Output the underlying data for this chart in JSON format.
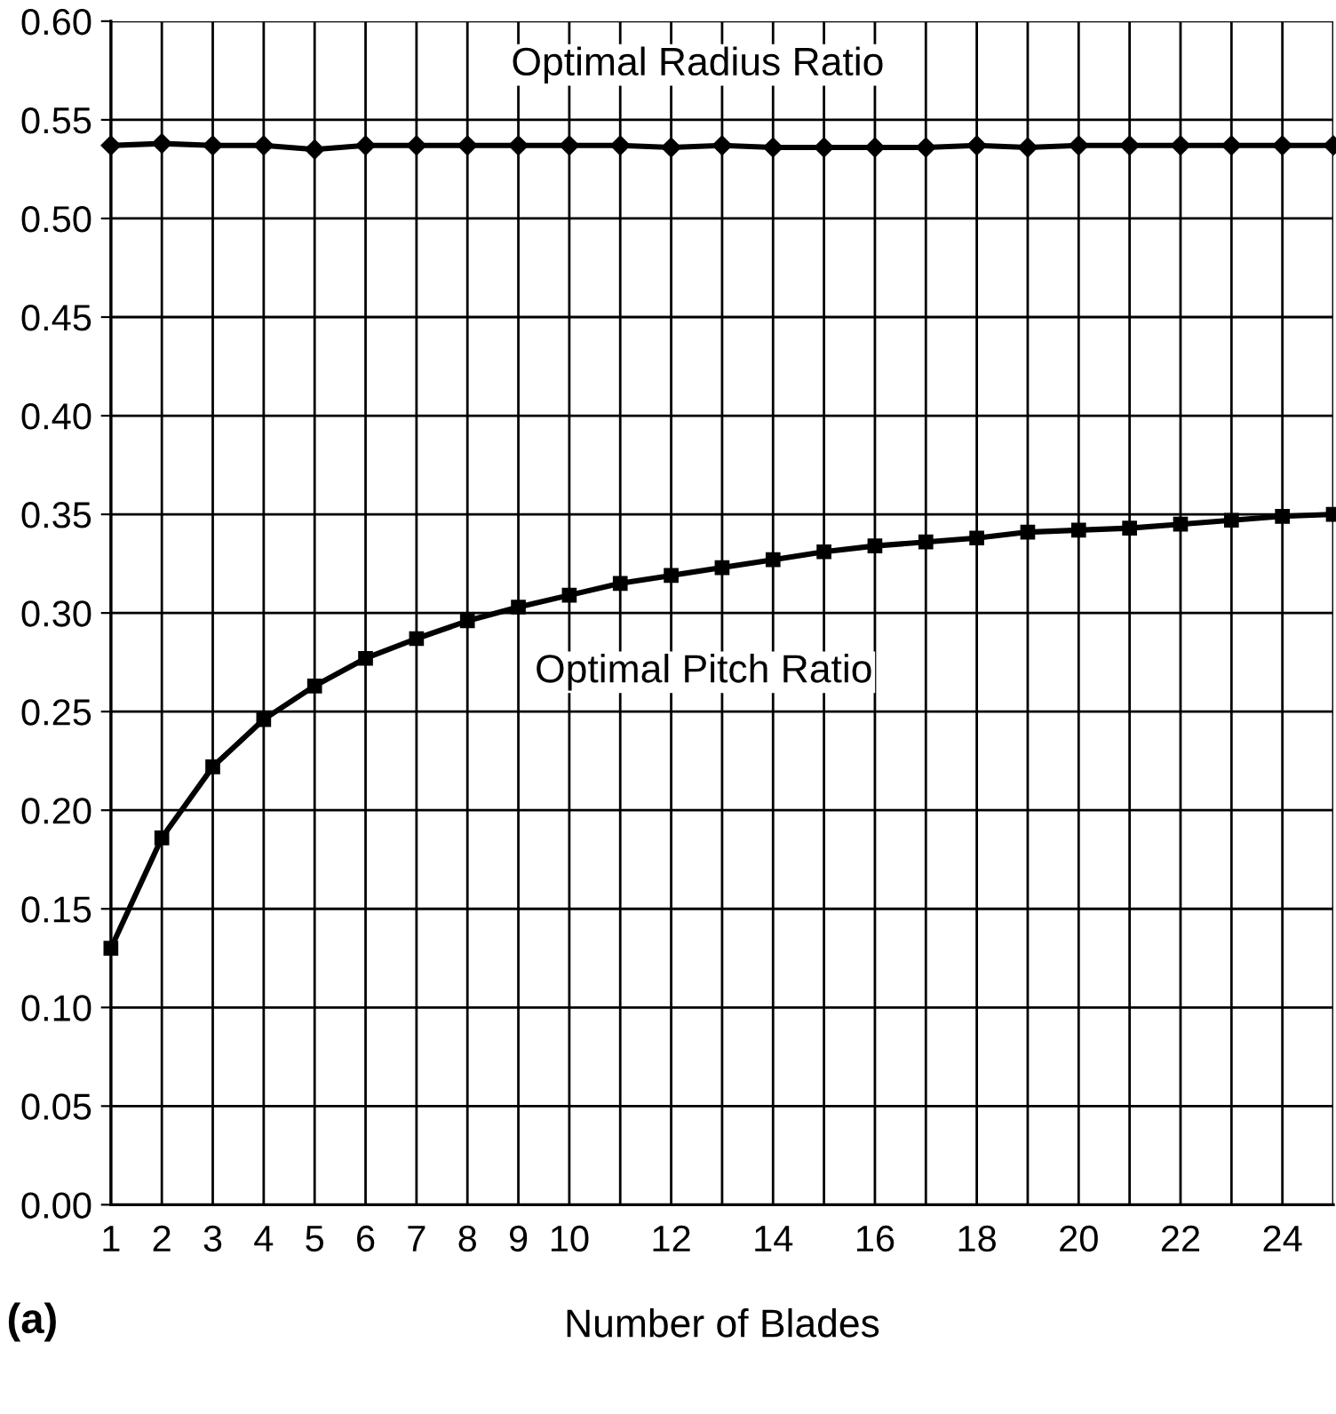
{
  "chart_data": {
    "type": "line",
    "xlabel": "Number of Blades",
    "x": [
      1,
      2,
      3,
      4,
      5,
      6,
      7,
      8,
      9,
      10,
      11,
      12,
      13,
      14,
      15,
      16,
      17,
      18,
      19,
      20,
      21,
      22,
      23,
      24,
      25
    ],
    "series": [
      {
        "color": "#000000",
        "marker": "diamond",
        "values": [
          0.537,
          0.538,
          0.537,
          0.537,
          0.535,
          0.537,
          0.537,
          0.537,
          0.537,
          0.537,
          0.537,
          0.536,
          0.537,
          0.536,
          0.536,
          0.536,
          0.536,
          0.537,
          0.536,
          0.537,
          0.537,
          0.537,
          0.537,
          0.537,
          0.537
        ]
      },
      {
        "color": "#000000",
        "marker": "square",
        "values": [
          0.13,
          0.186,
          0.222,
          0.246,
          0.263,
          0.277,
          0.287,
          0.296,
          0.303,
          0.309,
          0.315,
          0.319,
          0.323,
          0.327,
          0.331,
          0.334,
          0.336,
          0.338,
          0.341,
          0.342,
          0.343,
          0.345,
          0.347,
          0.349,
          0.35
        ]
      }
    ],
    "annotations": [
      "Optimal Radius Ratio",
      "Optimal Pitch Ratio",
      "(a)"
    ],
    "xlim": [
      1,
      25
    ],
    "xticks": [
      1,
      2,
      3,
      4,
      5,
      6,
      7,
      8,
      9,
      10,
      {
        "value": 11,
        "label": null
      },
      12,
      {
        "value": 13,
        "label": null
      },
      14,
      {
        "value": 15,
        "label": null
      },
      16,
      {
        "value": 17,
        "label": null
      },
      18,
      {
        "value": 19,
        "label": null
      },
      20,
      {
        "value": 21,
        "label": null
      },
      22,
      {
        "value": 23,
        "label": null
      },
      24,
      {
        "value": 25,
        "label": null
      }
    ],
    "ylim": [
      0,
      0.6
    ],
    "yticks": [
      {
        "value": 0,
        "label": "0.00"
      },
      {
        "value": 0.05,
        "label": "0.05"
      },
      {
        "value": 0.1,
        "label": "0.10"
      },
      {
        "value": 0.15,
        "label": "0.15"
      },
      {
        "value": 0.2,
        "label": "0.20"
      },
      {
        "value": 0.25,
        "label": "0.25"
      },
      {
        "value": 0.3,
        "label": "0.30"
      },
      {
        "value": 0.35,
        "label": "0.35"
      },
      {
        "value": 0.4,
        "label": "0.40"
      },
      {
        "value": 0.45,
        "label": "0.45"
      },
      {
        "value": 0.5,
        "label": "0.50"
      },
      {
        "value": 0.55,
        "label": "0.55"
      },
      {
        "value": 0.6,
        "label": "0.60"
      }
    ],
    "grid": true,
    "legend": false,
    "line_style": "solid"
  }
}
